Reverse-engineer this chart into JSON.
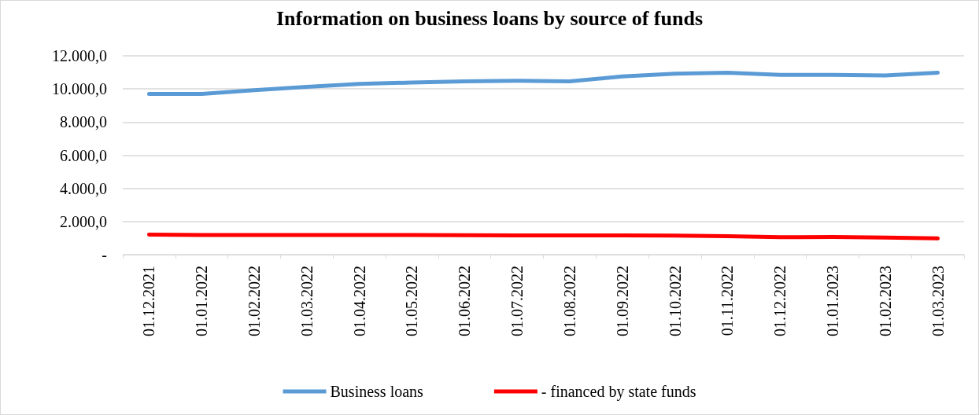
{
  "chart_data": {
    "type": "line",
    "title": "Information on business loans by source of funds",
    "categories": [
      "01.12.2021",
      "01.01.2022",
      "01.02.2022",
      "01.03.2022",
      "01.04.2022",
      "01.05.2022",
      "01.06.2022",
      "01.07.2022",
      "01.08.2022",
      "01.09.2022",
      "01.10.2022",
      "01.11.2022",
      "01.12.2022",
      "01.01.2023",
      "01.02.2023",
      "01.03.2023"
    ],
    "series": [
      {
        "name": "Business loans",
        "color": "#5b9bd5",
        "values": [
          9700,
          9700,
          9930,
          10130,
          10300,
          10390,
          10460,
          10490,
          10460,
          10750,
          10920,
          10980,
          10850,
          10850,
          10820,
          10980
        ]
      },
      {
        "name": "- financed by state funds",
        "color": "#ff0000",
        "values": [
          1210,
          1180,
          1180,
          1180,
          1190,
          1180,
          1170,
          1160,
          1160,
          1160,
          1150,
          1110,
          1050,
          1070,
          1030,
          980
        ]
      }
    ],
    "ylim": [
      0,
      12000
    ],
    "yticks": [
      {
        "value": 0,
        "label": "-"
      },
      {
        "value": 2000,
        "label": "2.000,0"
      },
      {
        "value": 4000,
        "label": "4.000,0"
      },
      {
        "value": 6000,
        "label": "6.000,0"
      },
      {
        "value": 8000,
        "label": "8.000,0"
      },
      {
        "value": 10000,
        "label": "10.000,0"
      },
      {
        "value": 12000,
        "label": "12.000,0"
      }
    ],
    "grid": "y",
    "legend": "bottom",
    "marker": "none",
    "line_style": "solid"
  }
}
